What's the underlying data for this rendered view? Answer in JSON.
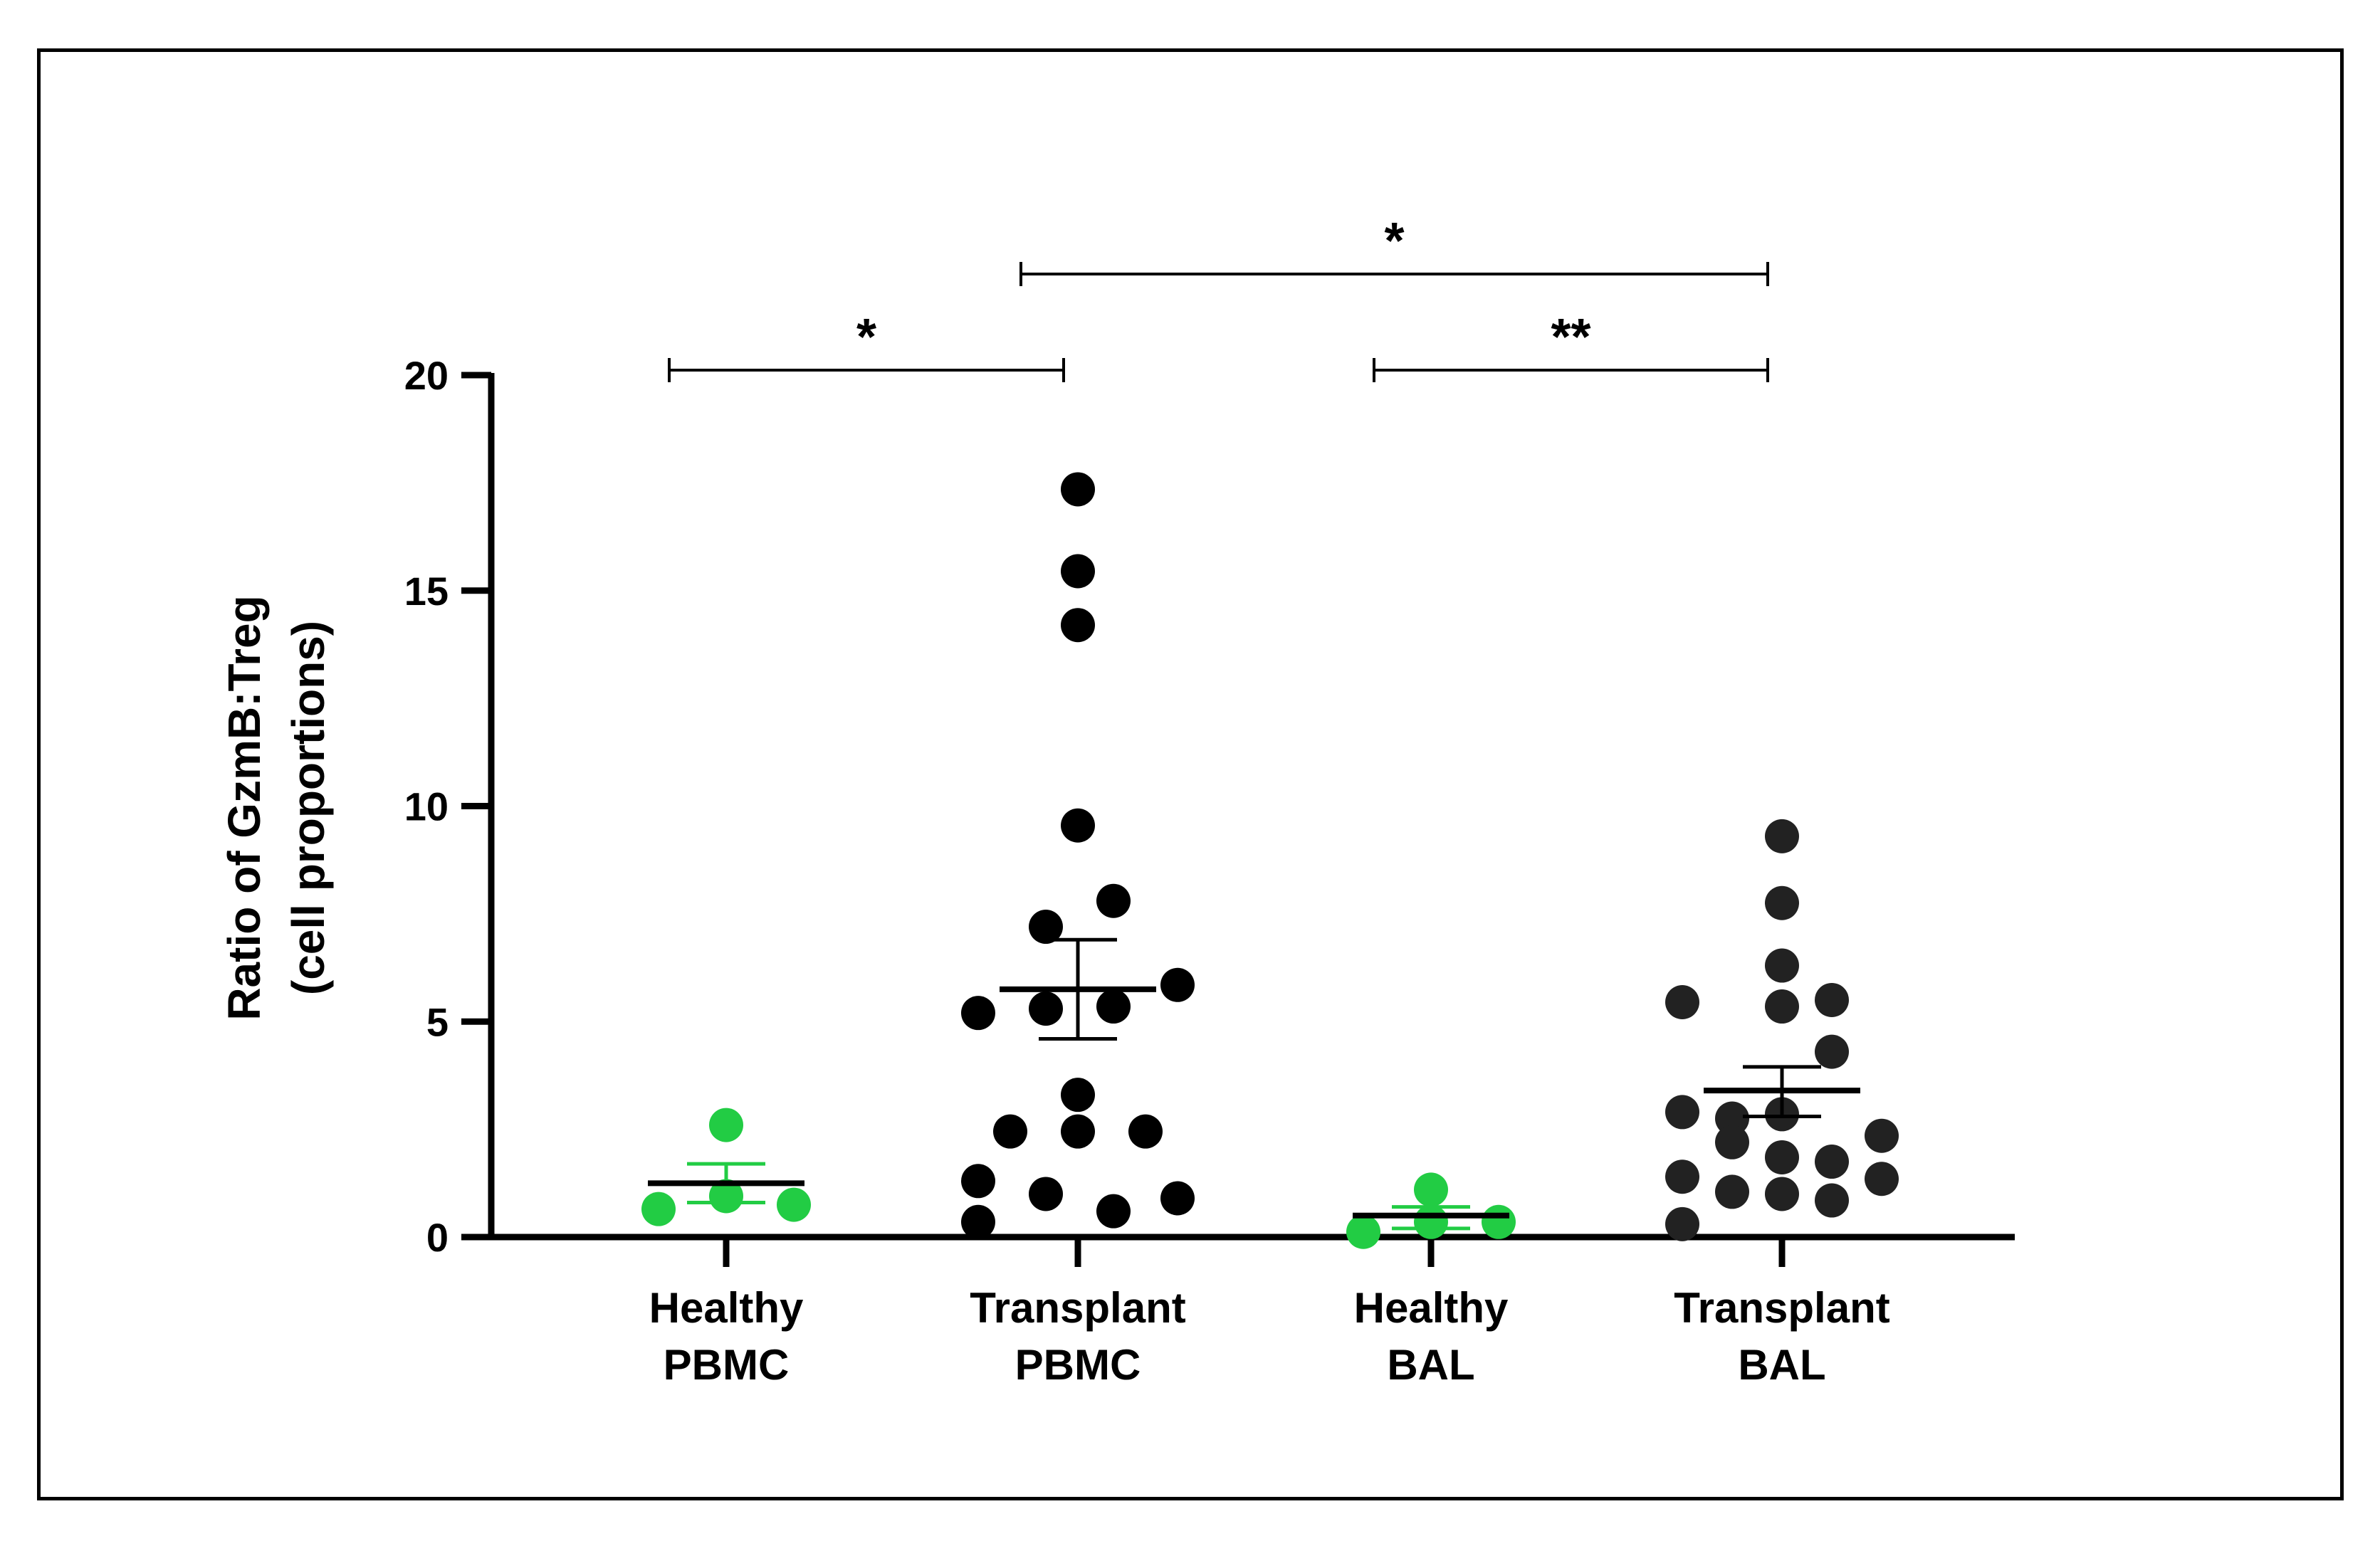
{
  "chart_data": {
    "type": "scatter",
    "title": "",
    "ylabel_lines": [
      "Ratio of GzmB:Treg",
      "(cell proportions)"
    ],
    "xlabel": "",
    "ylim": [
      0,
      20
    ],
    "yticks": [
      0,
      5,
      10,
      15,
      20
    ],
    "categories": [
      {
        "line1": "Healthy",
        "line2": "PBMC"
      },
      {
        "line1": "Transplant",
        "line2": "PBMC"
      },
      {
        "line1": "Healthy",
        "line2": "BAL"
      },
      {
        "line1": "Transplant",
        "line2": "BAL"
      }
    ],
    "series": [
      {
        "name": "Healthy PBMC",
        "color": "#22CC44",
        "mean": 1.25,
        "sem_low": 0.8,
        "sem_high": 1.7,
        "points": [
          {
            "offset": 0.0,
            "value": 2.6
          },
          {
            "offset": -0.19,
            "value": 0.65
          },
          {
            "offset": 0.0,
            "value": 0.95
          },
          {
            "offset": 0.19,
            "value": 0.75
          }
        ]
      },
      {
        "name": "Transplant PBMC",
        "color": "#000000",
        "mean": 5.75,
        "sem_low": 4.6,
        "sem_high": 6.9,
        "points": [
          {
            "offset": 0.0,
            "value": 17.35
          },
          {
            "offset": 0.0,
            "value": 15.45
          },
          {
            "offset": 0.0,
            "value": 14.2
          },
          {
            "offset": 0.0,
            "value": 9.55
          },
          {
            "offset": 0.1,
            "value": 7.8
          },
          {
            "offset": -0.09,
            "value": 7.2
          },
          {
            "offset": 0.28,
            "value": 5.85
          },
          {
            "offset": -0.28,
            "value": 5.2
          },
          {
            "offset": -0.09,
            "value": 5.3
          },
          {
            "offset": 0.1,
            "value": 5.35
          },
          {
            "offset": 0.0,
            "value": 3.3
          },
          {
            "offset": -0.19,
            "value": 2.45
          },
          {
            "offset": 0.0,
            "value": 2.45
          },
          {
            "offset": 0.19,
            "value": 2.45
          },
          {
            "offset": -0.28,
            "value": 1.3
          },
          {
            "offset": -0.09,
            "value": 1.0
          },
          {
            "offset": 0.28,
            "value": 0.9
          },
          {
            "offset": -0.28,
            "value": 0.35
          },
          {
            "offset": 0.1,
            "value": 0.6
          }
        ]
      },
      {
        "name": "Healthy BAL",
        "color": "#22CC44",
        "mean": 0.5,
        "sem_low": 0.2,
        "sem_high": 0.7,
        "points": [
          {
            "offset": 0.0,
            "value": 1.1
          },
          {
            "offset": 0.0,
            "value": 0.35
          },
          {
            "offset": 0.19,
            "value": 0.35
          },
          {
            "offset": -0.19,
            "value": 0.12
          }
        ]
      },
      {
        "name": "Transplant BAL",
        "color": "#222222",
        "mean": 3.4,
        "sem_low": 2.8,
        "sem_high": 3.95,
        "points": [
          {
            "offset": 0.0,
            "value": 9.3
          },
          {
            "offset": 0.0,
            "value": 7.75
          },
          {
            "offset": 0.0,
            "value": 6.3
          },
          {
            "offset": -0.28,
            "value": 5.45
          },
          {
            "offset": 0.0,
            "value": 5.35
          },
          {
            "offset": 0.14,
            "value": 5.5
          },
          {
            "offset": 0.14,
            "value": 4.3
          },
          {
            "offset": -0.28,
            "value": 2.9
          },
          {
            "offset": -0.14,
            "value": 2.75
          },
          {
            "offset": 0.0,
            "value": 2.85
          },
          {
            "offset": 0.28,
            "value": 2.35
          },
          {
            "offset": -0.14,
            "value": 2.2
          },
          {
            "offset": 0.0,
            "value": 1.85
          },
          {
            "offset": 0.14,
            "value": 1.75
          },
          {
            "offset": -0.28,
            "value": 1.4
          },
          {
            "offset": 0.28,
            "value": 1.35
          },
          {
            "offset": -0.14,
            "value": 1.05
          },
          {
            "offset": 0.0,
            "value": 1.0
          },
          {
            "offset": 0.14,
            "value": 0.85
          },
          {
            "offset": -0.28,
            "value": 0.3
          }
        ]
      }
    ],
    "significance": [
      {
        "from": 0,
        "to": 1,
        "level": 0,
        "label": "*"
      },
      {
        "from": 2,
        "to": 3,
        "level": 0,
        "label": "**"
      },
      {
        "from": 1,
        "to": 3,
        "level": 1,
        "label": "*"
      }
    ]
  }
}
